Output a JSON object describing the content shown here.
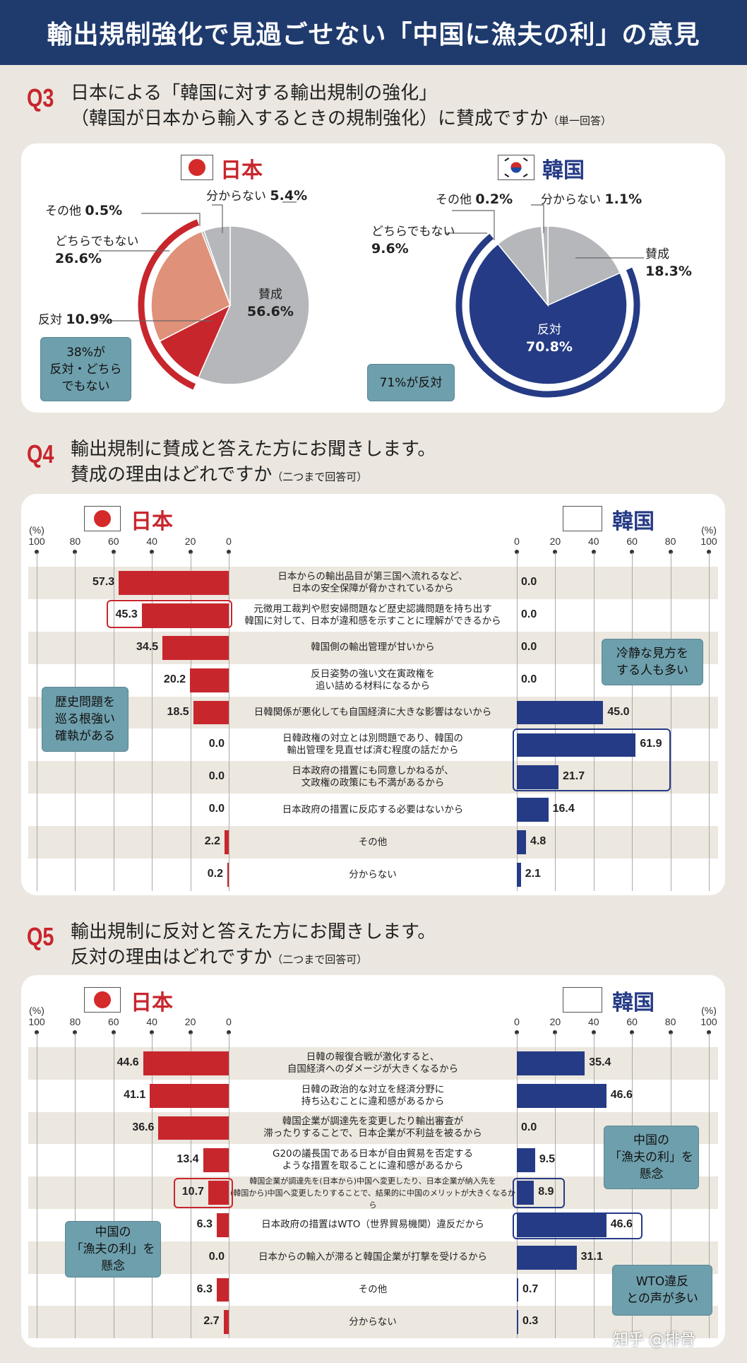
{
  "title": "輸出規制強化で見過ごせない「中国に漁夫の利」の意見",
  "q3": {
    "num": "Q3",
    "text": "日本による「韓国に対する輸出規制の強化」\n（韓国が日本から輸入するときの規制強化）に賛成ですか",
    "note": "（単一回答）"
  },
  "q4": {
    "num": "Q4",
    "text": "輸出規制に賛成と答えた方にお聞きします。\n賛成の理由はどれですか",
    "note": "（二つまで回答可）"
  },
  "q5": {
    "num": "Q5",
    "text": "輸出規制に反対と答えた方にお聞きします。\n反対の理由はどれですか",
    "note": "（二つまで回答可）"
  },
  "countries": {
    "japan": "日本",
    "korea": "韓国"
  },
  "colors": {
    "title_bar": "#1f3b6e",
    "japan_red": "#c8262d",
    "japan_salmon": "#e0917a",
    "neutral_gray": "#b6b7ba",
    "korea_navy": "#253b85",
    "callout": "#6e9fac"
  },
  "icons": {
    "japan_flag": "japan-flag-icon",
    "korea_flag": "korea-flag-icon"
  },
  "axis": {
    "unit": "(%)",
    "left_ticks": [
      "100",
      "80",
      "60",
      "40",
      "20",
      "0"
    ],
    "right_ticks": [
      "0",
      "20",
      "40",
      "60",
      "80",
      "100"
    ]
  },
  "callouts": {
    "q3_japan": "38%が\n反対・どちら\nでもない",
    "q3_korea": "71%が反対",
    "q4_japan": "歴史問題を\n巡る根強い\n確執がある",
    "q4_korea": "冷静な見方を\nする人も多い",
    "q5_japan": "中国の\n「漁夫の利」を\n懸念",
    "q5_korea_china": "中国の\n「漁夫の利」を\n懸念",
    "q5_korea_wto": "WTO違反\nとの声が多い"
  },
  "watermark": "知乎 @排骨",
  "chart_data": [
    {
      "type": "pie",
      "country": "日本",
      "unit": "%",
      "slices": [
        {
          "label": "賛成",
          "value": 56.6,
          "color": "#b6b7ba"
        },
        {
          "label": "反対",
          "value": 10.9,
          "color": "#c8262d"
        },
        {
          "label": "どちらでもない",
          "value": 26.6,
          "color": "#e0917a"
        },
        {
          "label": "その他",
          "value": 0.5,
          "color": "#b6b7ba"
        },
        {
          "label": "分からない",
          "value": 5.4,
          "color": "#b6b7ba"
        }
      ]
    },
    {
      "type": "pie",
      "country": "韓国",
      "unit": "%",
      "slices": [
        {
          "label": "賛成",
          "value": 18.3,
          "color": "#b6b7ba"
        },
        {
          "label": "反対",
          "value": 70.8,
          "color": "#253b85"
        },
        {
          "label": "どちらでもない",
          "value": 9.6,
          "color": "#b6b7ba"
        },
        {
          "label": "その他",
          "value": 0.2,
          "color": "#b6b7ba"
        },
        {
          "label": "分からない",
          "value": 1.1,
          "color": "#b6b7ba"
        }
      ]
    },
    {
      "type": "bar",
      "orientation": "horizontal-butterfly",
      "xlim": [
        0,
        100
      ],
      "unit": "(%)",
      "series": [
        {
          "name": "日本",
          "color": "#c8262d"
        },
        {
          "name": "韓国",
          "color": "#253b85"
        }
      ],
      "rows": [
        {
          "label": "日本からの輸出品目が第三国へ流れるなど、\n日本の安全保障が脅かされているから",
          "japan": "57.3",
          "korea": "0.0"
        },
        {
          "label": "元徴用工裁判や慰安婦問題など歴史認識問題を持ち出す\n韓国に対して、日本が違和感を示すことに理解ができるから",
          "japan": "45.3",
          "korea": "0.0"
        },
        {
          "label": "韓国側の輸出管理が甘いから",
          "japan": "34.5",
          "korea": "0.0"
        },
        {
          "label": "反日姿勢の強い文在寅政権を\n追い詰める材料になるから",
          "japan": "20.2",
          "korea": "0.0"
        },
        {
          "label": "日韓関係が悪化しても自国経済に大きな影響はないから",
          "japan": "18.5",
          "korea": "45.0"
        },
        {
          "label": "日韓政権の対立とは別問題であり、韓国の\n輸出管理を見直せば済む程度の話だから",
          "japan": "0.0",
          "korea": "61.9"
        },
        {
          "label": "日本政府の措置にも同意しかねるが、\n文政権の政策にも不満があるから",
          "japan": "0.0",
          "korea": "21.7"
        },
        {
          "label": "日本政府の措置に反応する必要はないから",
          "japan": "0.0",
          "korea": "16.4"
        },
        {
          "label": "その他",
          "japan": "2.2",
          "korea": "4.8"
        },
        {
          "label": "分からない",
          "japan": "0.2",
          "korea": "2.1"
        }
      ]
    },
    {
      "type": "bar",
      "orientation": "horizontal-butterfly",
      "xlim": [
        0,
        100
      ],
      "unit": "(%)",
      "series": [
        {
          "name": "日本",
          "color": "#c8262d"
        },
        {
          "name": "韓国",
          "color": "#253b85"
        }
      ],
      "rows": [
        {
          "label": "日韓の報復合戦が激化すると、\n自国経済へのダメージが大きくなるから",
          "japan": "44.6",
          "korea": "35.4"
        },
        {
          "label": "日韓の政治的な対立を経済分野に\n持ち込むことに違和感があるから",
          "japan": "41.1",
          "korea": "46.6"
        },
        {
          "label": "韓国企業が調達先を変更したり輸出審査が\n滞ったりすることで、日本企業が不利益を被るから",
          "japan": "36.6",
          "korea": "0.0"
        },
        {
          "label": "G20の議長国である日本が自由貿易を否定する\nような措置を取ることに違和感があるから",
          "japan": "13.4",
          "korea": "9.5"
        },
        {
          "label": "韓国企業が調達先を(日本から)中国へ変更したり、日本企業が納入先を\n(韓国から)中国へ変更したりすることで、結果的に中国のメリットが大きくなるから",
          "japan": "10.7",
          "korea": "8.9"
        },
        {
          "label": "日本政府の措置はWTO（世界貿易機関）違反だから",
          "japan": "6.3",
          "korea": "46.6"
        },
        {
          "label": "日本からの輸入が滞ると韓国企業が打撃を受けるから",
          "japan": "0.0",
          "korea": "31.1"
        },
        {
          "label": "その他",
          "japan": "6.3",
          "korea": "0.7"
        },
        {
          "label": "分からない",
          "japan": "2.7",
          "korea": "0.3"
        }
      ]
    }
  ]
}
